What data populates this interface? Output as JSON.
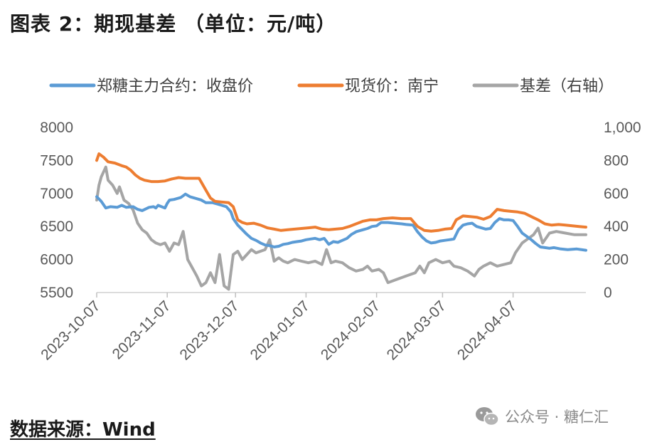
{
  "figure": {
    "title": "图表 2：期现基差 （单位：元/吨）",
    "source": "数据来源：Wind",
    "watermark": "公众号 · 糖仁汇",
    "watermark_icon": "wechat-icon"
  },
  "chart_data": {
    "type": "line",
    "title": "",
    "xlabel": "",
    "ylabel": "",
    "y2label": "",
    "x_ticks": [
      "2023-10-07",
      "2023-11-07",
      "2023-12-07",
      "2024-01-07",
      "2024-02-07",
      "2024-03-07",
      "2024-04-07"
    ],
    "x_range": [
      "2023-10-07",
      "2024-05-09"
    ],
    "ylim": [
      5500,
      8000
    ],
    "y_ticks": [
      "5500",
      "6000",
      "6500",
      "7000",
      "7500",
      "8000"
    ],
    "y2lim": [
      0,
      1000
    ],
    "y2_ticks": [
      "0",
      "200",
      "400",
      "600",
      "800",
      "1,000"
    ],
    "grid": false,
    "legend_position": "top",
    "series": [
      {
        "name": "郑糖主力合约：收盘价",
        "axis": "left",
        "color": "#5b9bd5",
        "points": [
          [
            "2023-10-07",
            6950
          ],
          [
            "2023-10-09",
            6880
          ],
          [
            "2023-10-11",
            6780
          ],
          [
            "2023-10-13",
            6800
          ],
          [
            "2023-10-16",
            6790
          ],
          [
            "2023-10-18",
            6820
          ],
          [
            "2023-10-20",
            6790
          ],
          [
            "2023-10-23",
            6800
          ],
          [
            "2023-10-25",
            6760
          ],
          [
            "2023-10-27",
            6740
          ],
          [
            "2023-10-30",
            6790
          ],
          [
            "2023-11-01",
            6800
          ],
          [
            "2023-11-02",
            6780
          ],
          [
            "2023-11-03",
            6820
          ],
          [
            "2023-11-06",
            6780
          ],
          [
            "2023-11-07",
            6850
          ],
          [
            "2023-11-08",
            6900
          ],
          [
            "2023-11-10",
            6910
          ],
          [
            "2023-11-13",
            6940
          ],
          [
            "2023-11-15",
            6990
          ],
          [
            "2023-11-17",
            6950
          ],
          [
            "2023-11-20",
            6920
          ],
          [
            "2023-11-22",
            6900
          ],
          [
            "2023-11-24",
            6860
          ],
          [
            "2023-11-27",
            6860
          ],
          [
            "2023-11-29",
            6840
          ],
          [
            "2023-12-01",
            6820
          ],
          [
            "2023-12-03",
            6800
          ],
          [
            "2023-12-05",
            6720
          ],
          [
            "2023-12-06",
            6620
          ],
          [
            "2023-12-08",
            6520
          ],
          [
            "2023-12-10",
            6450
          ],
          [
            "2023-12-12",
            6380
          ],
          [
            "2023-12-14",
            6320
          ],
          [
            "2023-12-16",
            6290
          ],
          [
            "2023-12-18",
            6250
          ],
          [
            "2023-12-20",
            6220
          ],
          [
            "2023-12-22",
            6210
          ],
          [
            "2023-12-24",
            6190
          ],
          [
            "2023-12-26",
            6200
          ],
          [
            "2023-12-28",
            6230
          ],
          [
            "2023-12-30",
            6240
          ],
          [
            "2024-01-01",
            6260
          ],
          [
            "2024-01-03",
            6270
          ],
          [
            "2024-01-05",
            6280
          ],
          [
            "2024-01-07",
            6300
          ],
          [
            "2024-01-09",
            6310
          ],
          [
            "2024-01-11",
            6320
          ],
          [
            "2024-01-13",
            6300
          ],
          [
            "2024-01-15",
            6320
          ],
          [
            "2024-01-17",
            6230
          ],
          [
            "2024-01-19",
            6270
          ],
          [
            "2024-01-21",
            6260
          ],
          [
            "2024-01-23",
            6290
          ],
          [
            "2024-01-25",
            6320
          ],
          [
            "2024-01-27",
            6380
          ],
          [
            "2024-01-29",
            6420
          ],
          [
            "2024-02-01",
            6450
          ],
          [
            "2024-02-03",
            6470
          ],
          [
            "2024-02-05",
            6500
          ],
          [
            "2024-02-07",
            6510
          ],
          [
            "2024-02-09",
            6560
          ],
          [
            "2024-02-12",
            6560
          ],
          [
            "2024-02-15",
            6550
          ],
          [
            "2024-02-18",
            6540
          ],
          [
            "2024-02-20",
            6530
          ],
          [
            "2024-02-23",
            6520
          ],
          [
            "2024-02-25",
            6420
          ],
          [
            "2024-02-27",
            6340
          ],
          [
            "2024-02-29",
            6280
          ],
          [
            "2024-03-02",
            6250
          ],
          [
            "2024-03-04",
            6260
          ],
          [
            "2024-03-06",
            6280
          ],
          [
            "2024-03-08",
            6290
          ],
          [
            "2024-03-10",
            6300
          ],
          [
            "2024-03-12",
            6310
          ],
          [
            "2024-03-14",
            6450
          ],
          [
            "2024-03-16",
            6520
          ],
          [
            "2024-03-18",
            6540
          ],
          [
            "2024-03-20",
            6550
          ],
          [
            "2024-03-22",
            6500
          ],
          [
            "2024-03-24",
            6480
          ],
          [
            "2024-03-26",
            6460
          ],
          [
            "2024-03-28",
            6470
          ],
          [
            "2024-03-30",
            6560
          ],
          [
            "2024-04-01",
            6620
          ],
          [
            "2024-04-03",
            6600
          ],
          [
            "2024-04-05",
            6600
          ],
          [
            "2024-04-07",
            6590
          ],
          [
            "2024-04-09",
            6500
          ],
          [
            "2024-04-11",
            6400
          ],
          [
            "2024-04-13",
            6350
          ],
          [
            "2024-04-15",
            6300
          ],
          [
            "2024-04-17",
            6240
          ],
          [
            "2024-04-19",
            6190
          ],
          [
            "2024-04-21",
            6180
          ],
          [
            "2024-04-23",
            6170
          ],
          [
            "2024-04-25",
            6180
          ],
          [
            "2024-04-28",
            6160
          ],
          [
            "2024-05-01",
            6150
          ],
          [
            "2024-05-05",
            6160
          ],
          [
            "2024-05-09",
            6140
          ]
        ]
      },
      {
        "name": "现货价：南宁",
        "axis": "left",
        "color": "#ed7d31",
        "points": [
          [
            "2023-10-07",
            7500
          ],
          [
            "2023-10-08",
            7600
          ],
          [
            "2023-10-10",
            7550
          ],
          [
            "2023-10-12",
            7480
          ],
          [
            "2023-10-15",
            7460
          ],
          [
            "2023-10-18",
            7420
          ],
          [
            "2023-10-20",
            7400
          ],
          [
            "2023-10-22",
            7350
          ],
          [
            "2023-10-24",
            7280
          ],
          [
            "2023-10-26",
            7230
          ],
          [
            "2023-10-28",
            7200
          ],
          [
            "2023-10-31",
            7180
          ],
          [
            "2023-11-03",
            7180
          ],
          [
            "2023-11-06",
            7190
          ],
          [
            "2023-11-09",
            7220
          ],
          [
            "2023-11-12",
            7240
          ],
          [
            "2023-11-15",
            7230
          ],
          [
            "2023-11-18",
            7230
          ],
          [
            "2023-11-21",
            7230
          ],
          [
            "2023-11-24",
            7050
          ],
          [
            "2023-11-26",
            6930
          ],
          [
            "2023-11-28",
            6880
          ],
          [
            "2023-12-01",
            6870
          ],
          [
            "2023-12-04",
            6860
          ],
          [
            "2023-12-06",
            6800
          ],
          [
            "2023-12-08",
            6600
          ],
          [
            "2023-12-10",
            6560
          ],
          [
            "2023-12-12",
            6540
          ],
          [
            "2023-12-15",
            6550
          ],
          [
            "2023-12-18",
            6520
          ],
          [
            "2023-12-21",
            6480
          ],
          [
            "2023-12-24",
            6460
          ],
          [
            "2023-12-27",
            6440
          ],
          [
            "2023-12-30",
            6450
          ],
          [
            "2024-01-02",
            6460
          ],
          [
            "2024-01-05",
            6470
          ],
          [
            "2024-01-08",
            6480
          ],
          [
            "2024-01-11",
            6490
          ],
          [
            "2024-01-14",
            6460
          ],
          [
            "2024-01-17",
            6450
          ],
          [
            "2024-01-20",
            6460
          ],
          [
            "2024-01-23",
            6470
          ],
          [
            "2024-01-26",
            6500
          ],
          [
            "2024-01-29",
            6540
          ],
          [
            "2024-02-01",
            6580
          ],
          [
            "2024-02-04",
            6600
          ],
          [
            "2024-02-07",
            6600
          ],
          [
            "2024-02-10",
            6620
          ],
          [
            "2024-02-14",
            6630
          ],
          [
            "2024-02-18",
            6620
          ],
          [
            "2024-02-22",
            6620
          ],
          [
            "2024-02-25",
            6500
          ],
          [
            "2024-02-28",
            6440
          ],
          [
            "2024-03-02",
            6430
          ],
          [
            "2024-03-05",
            6440
          ],
          [
            "2024-03-08",
            6460
          ],
          [
            "2024-03-11",
            6470
          ],
          [
            "2024-03-13",
            6600
          ],
          [
            "2024-03-16",
            6660
          ],
          [
            "2024-03-19",
            6650
          ],
          [
            "2024-03-22",
            6640
          ],
          [
            "2024-03-25",
            6610
          ],
          [
            "2024-03-28",
            6650
          ],
          [
            "2024-03-31",
            6760
          ],
          [
            "2024-04-03",
            6740
          ],
          [
            "2024-04-06",
            6730
          ],
          [
            "2024-04-09",
            6720
          ],
          [
            "2024-04-12",
            6700
          ],
          [
            "2024-04-15",
            6650
          ],
          [
            "2024-04-18",
            6600
          ],
          [
            "2024-04-21",
            6540
          ],
          [
            "2024-04-24",
            6520
          ],
          [
            "2024-04-27",
            6530
          ],
          [
            "2024-04-30",
            6520
          ],
          [
            "2024-05-03",
            6510
          ],
          [
            "2024-05-06",
            6500
          ],
          [
            "2024-05-09",
            6490
          ]
        ]
      },
      {
        "name": "基差（右轴）",
        "axis": "right",
        "color": "#a5a5a5",
        "points": [
          [
            "2023-10-07",
            560
          ],
          [
            "2023-10-08",
            650
          ],
          [
            "2023-10-09",
            700
          ],
          [
            "2023-10-11",
            760
          ],
          [
            "2023-10-12",
            680
          ],
          [
            "2023-10-14",
            650
          ],
          [
            "2023-10-16",
            600
          ],
          [
            "2023-10-17",
            640
          ],
          [
            "2023-10-19",
            560
          ],
          [
            "2023-10-21",
            540
          ],
          [
            "2023-10-23",
            500
          ],
          [
            "2023-10-25",
            420
          ],
          [
            "2023-10-27",
            380
          ],
          [
            "2023-10-29",
            360
          ],
          [
            "2023-10-31",
            320
          ],
          [
            "2023-11-02",
            300
          ],
          [
            "2023-11-04",
            290
          ],
          [
            "2023-11-06",
            300
          ],
          [
            "2023-11-08",
            250
          ],
          [
            "2023-11-10",
            300
          ],
          [
            "2023-11-12",
            290
          ],
          [
            "2023-11-14",
            370
          ],
          [
            "2023-11-16",
            200
          ],
          [
            "2023-11-18",
            150
          ],
          [
            "2023-11-20",
            100
          ],
          [
            "2023-11-22",
            40
          ],
          [
            "2023-11-24",
            60
          ],
          [
            "2023-11-26",
            120
          ],
          [
            "2023-11-28",
            60
          ],
          [
            "2023-11-30",
            230
          ],
          [
            "2023-12-02",
            40
          ],
          [
            "2023-12-04",
            20
          ],
          [
            "2023-12-06",
            230
          ],
          [
            "2023-12-08",
            250
          ],
          [
            "2023-12-10",
            200
          ],
          [
            "2023-12-12",
            230
          ],
          [
            "2023-12-14",
            260
          ],
          [
            "2023-12-16",
            240
          ],
          [
            "2023-12-18",
            250
          ],
          [
            "2023-12-20",
            260
          ],
          [
            "2023-12-22",
            320
          ],
          [
            "2023-12-24",
            190
          ],
          [
            "2023-12-26",
            210
          ],
          [
            "2023-12-28",
            190
          ],
          [
            "2023-12-30",
            180
          ],
          [
            "2024-01-02",
            200
          ],
          [
            "2024-01-05",
            190
          ],
          [
            "2024-01-08",
            180
          ],
          [
            "2024-01-11",
            190
          ],
          [
            "2024-01-14",
            170
          ],
          [
            "2024-01-16",
            260
          ],
          [
            "2024-01-18",
            180
          ],
          [
            "2024-01-20",
            190
          ],
          [
            "2024-01-23",
            180
          ],
          [
            "2024-01-26",
            150
          ],
          [
            "2024-01-29",
            130
          ],
          [
            "2024-02-01",
            140
          ],
          [
            "2024-02-03",
            160
          ],
          [
            "2024-02-05",
            130
          ],
          [
            "2024-02-08",
            140
          ],
          [
            "2024-02-10",
            120
          ],
          [
            "2024-02-12",
            60
          ],
          [
            "2024-02-16",
            80
          ],
          [
            "2024-02-20",
            100
          ],
          [
            "2024-02-24",
            120
          ],
          [
            "2024-02-26",
            160
          ],
          [
            "2024-02-28",
            120
          ],
          [
            "2024-03-01",
            180
          ],
          [
            "2024-03-04",
            200
          ],
          [
            "2024-03-07",
            180
          ],
          [
            "2024-03-10",
            190
          ],
          [
            "2024-03-12",
            160
          ],
          [
            "2024-03-15",
            150
          ],
          [
            "2024-03-18",
            130
          ],
          [
            "2024-03-21",
            100
          ],
          [
            "2024-03-23",
            140
          ],
          [
            "2024-03-25",
            160
          ],
          [
            "2024-03-28",
            180
          ],
          [
            "2024-03-31",
            160
          ],
          [
            "2024-04-03",
            170
          ],
          [
            "2024-04-06",
            180
          ],
          [
            "2024-04-08",
            240
          ],
          [
            "2024-04-11",
            300
          ],
          [
            "2024-04-14",
            330
          ],
          [
            "2024-04-16",
            350
          ],
          [
            "2024-04-18",
            390
          ],
          [
            "2024-04-20",
            300
          ],
          [
            "2024-04-23",
            360
          ],
          [
            "2024-04-26",
            370
          ],
          [
            "2024-04-30",
            360
          ],
          [
            "2024-05-04",
            350
          ],
          [
            "2024-05-09",
            350
          ]
        ]
      }
    ]
  }
}
